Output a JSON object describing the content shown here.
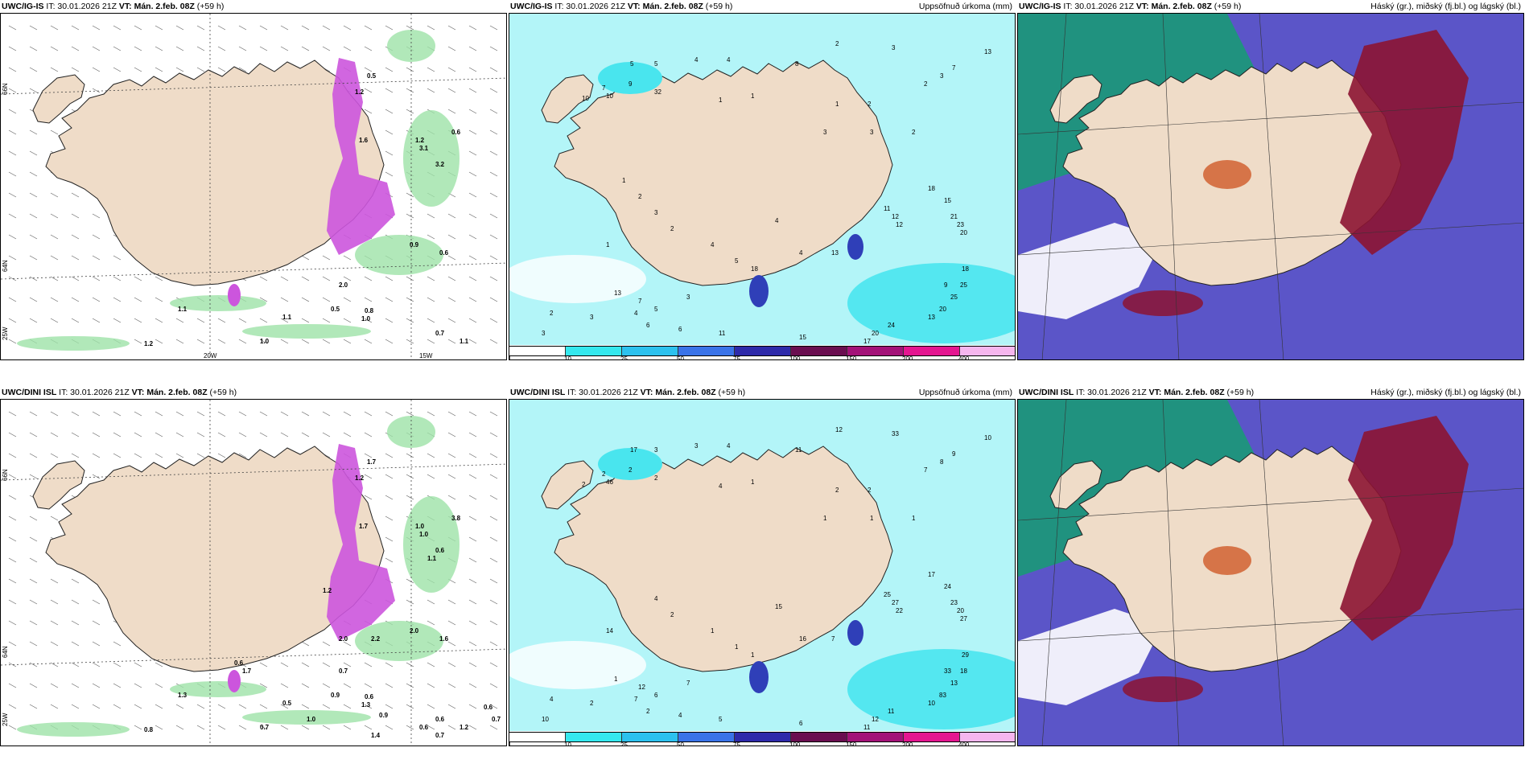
{
  "colors": {
    "land": "#efdcc8",
    "sea_light": "#b3f5f8",
    "sea_cyan": "#49e5ee",
    "precip_magenta": "#cc55dd",
    "precip_green": "#1c9a4e",
    "low_cloud": "#5b55c8",
    "high_cloud": "#169e72",
    "mid_cloud": "#8c1432"
  },
  "panels": [
    {
      "id": "ig-precip",
      "title_model": "UWC/IG-IS",
      "title_it": "IT: 30.01.2026 21Z",
      "title_vt": "VT: Mán. 2.feb. 08Z",
      "title_lead": "(+59 h)",
      "title_right": "",
      "lat_labels": [
        "66N",
        "64N",
        "25W"
      ],
      "lon_labels": [
        "20W",
        "15W"
      ],
      "values": [
        "0.5",
        "1.2",
        "1.6",
        "0.6",
        "1.1",
        "1.1",
        "1.0",
        "0.8",
        "0.5",
        "1.0",
        "0.9",
        "0.6",
        "2.0",
        "1.2",
        "0.7",
        "1.1",
        "1.2",
        "3.1",
        "3.2"
      ]
    },
    {
      "id": "ig-accum",
      "title_model": "UWC/IG-IS",
      "title_it": "IT: 30.01.2026 21Z",
      "title_vt": "VT: Mán. 2.feb. 08Z",
      "title_lead": "(+59 h)",
      "title_right": "Uppsöfnuð úrkoma (mm)",
      "colorbar_ticks": [
        "1",
        "10",
        "25",
        "50",
        "75",
        "100",
        "150",
        "200",
        "400"
      ],
      "values": [
        "4",
        "4",
        "5",
        "8",
        "5",
        "2",
        "3",
        "10",
        "9",
        "7",
        "10",
        "32",
        "1",
        "1",
        "1",
        "2",
        "3",
        "3",
        "2",
        "1",
        "4",
        "4",
        "13",
        "2",
        "3",
        "7",
        "13",
        "16",
        "18",
        "15",
        "21",
        "23",
        "20",
        "11",
        "12",
        "12",
        "9",
        "18",
        "25",
        "25",
        "20",
        "13",
        "24",
        "20",
        "17",
        "15",
        "11",
        "6",
        "6",
        "4",
        "2",
        "3",
        "7",
        "13",
        "3",
        "5",
        "3",
        "18",
        "5",
        "4",
        "2",
        "3",
        "2",
        "1"
      ]
    },
    {
      "id": "ig-cloud",
      "title_model": "UWC/IG-IS",
      "title_it": "IT: 30.01.2026 21Z",
      "title_vt": "VT: Mán. 2.feb. 08Z",
      "title_lead": "(+59 h)",
      "title_right": "Háský (gr.), miðský (fj.bl.) og lágský (bl.)"
    },
    {
      "id": "dini-precip",
      "title_model": "UWC/DINI ISL",
      "title_it": "IT: 30.01.2026 21Z",
      "title_vt": "VT: Mán. 2.feb. 08Z",
      "title_lead": "(+59 h)",
      "title_right": "",
      "lat_labels": [
        "66N",
        "64N",
        "25W"
      ],
      "lon_labels": [],
      "values": [
        "1.7",
        "1.2",
        "1.7",
        "3.8",
        "1.3",
        "0.5",
        "0.7",
        "0.6",
        "0.9",
        "1.3",
        "2.0",
        "1.6",
        "0.7",
        "0.8",
        "0.6",
        "1.2",
        "1.0",
        "1.0",
        "0.6",
        "1.1",
        "1.4",
        "0.9",
        "0.6",
        "0.7",
        "0.7",
        "0.6",
        "2.0",
        "1.7",
        "0.6",
        "1.2",
        "2.2",
        "1.0"
      ]
    },
    {
      "id": "dini-accum",
      "title_model": "UWC/DINI ISL",
      "title_it": "IT: 30.01.2026 21Z",
      "title_vt": "VT: Mán. 2.feb. 08Z",
      "title_lead": "(+59 h)",
      "title_right": "Uppsöfnuð úrkoma (mm)",
      "colorbar_ticks": [
        "1",
        "10",
        "25",
        "50",
        "75",
        "100",
        "150",
        "200",
        "400"
      ],
      "values": [
        "3",
        "4",
        "3",
        "11",
        "17",
        "12",
        "33",
        "46",
        "2",
        "2",
        "2",
        "2",
        "4",
        "1",
        "2",
        "2",
        "1",
        "1",
        "1",
        "14",
        "15",
        "16",
        "7",
        "7",
        "8",
        "9",
        "10",
        "11",
        "17",
        "24",
        "23",
        "20",
        "27",
        "25",
        "22",
        "27",
        "33",
        "29",
        "18",
        "13",
        "83",
        "10",
        "11",
        "12",
        "11",
        "6",
        "5",
        "4",
        "2",
        "7",
        "4",
        "10",
        "12",
        "1",
        "2",
        "6",
        "7",
        "1",
        "1",
        "1",
        "2",
        "4"
      ]
    },
    {
      "id": "dini-cloud",
      "title_model": "UWC/DINI ISL",
      "title_it": "IT: 30.01.2026 21Z",
      "title_vt": "VT: Mán. 2.feb. 08Z",
      "title_lead": "(+59 h)",
      "title_right": "Háský (gr.), miðský (fj.bl.) og lágský (bl.)"
    }
  ]
}
